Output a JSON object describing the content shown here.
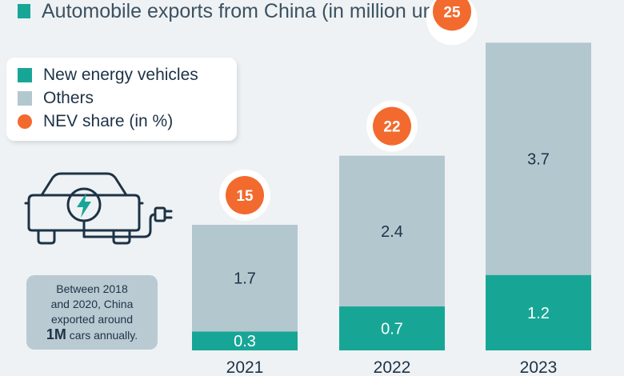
{
  "title": "Automobile exports from China (in million units)",
  "legend": {
    "items": [
      {
        "label": "New energy vehicles",
        "color": "#17a696",
        "shape": "square"
      },
      {
        "label": "Others",
        "color": "#b3c7cf",
        "shape": "square"
      },
      {
        "label": "NEV share (in %)",
        "color": "#f26a2e",
        "shape": "circle"
      }
    ]
  },
  "note": {
    "line1": "Between 2018",
    "line2": "and 2020, China",
    "line3": "exported around",
    "strong": "1M",
    "line4_rest": " cars annually."
  },
  "icons": {
    "car": "electric-car-charging-icon"
  },
  "chart_data": {
    "type": "bar",
    "stacked": true,
    "categories": [
      "2021",
      "2022",
      "2023"
    ],
    "series": [
      {
        "name": "New energy vehicles",
        "values": [
          0.3,
          0.7,
          1.2
        ],
        "color": "#17a696"
      },
      {
        "name": "Others",
        "values": [
          1.7,
          2.4,
          3.7
        ],
        "color": "#b3c7cf"
      }
    ],
    "nev_share_percent": [
      15,
      22,
      25
    ],
    "nev_share_color": "#f26a2e",
    "title": "Automobile exports from China (in million units)",
    "grid": false,
    "legend_position": "top-left"
  }
}
